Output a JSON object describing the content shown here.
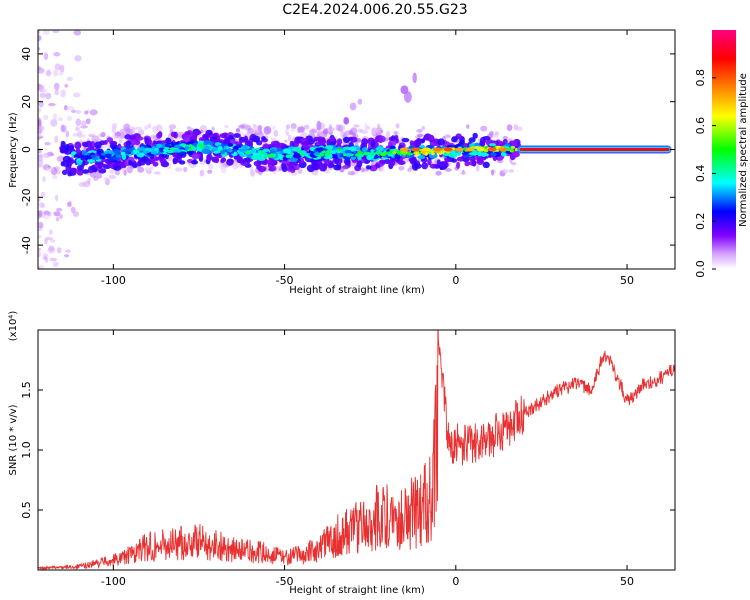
{
  "title": "C2E4.2024.006.20.55.G23",
  "chart_data": [
    {
      "type": "heatmap",
      "xlabel": "Height of straight line (km)",
      "ylabel": "Frequency (Hz)",
      "xlim": [
        -122,
        64
      ],
      "ylim": [
        -50,
        50
      ],
      "xticks": [
        -100,
        -50,
        0,
        50
      ],
      "xtick_labels": [
        "-100",
        "-50",
        "0",
        "50"
      ],
      "yticks": [
        -40,
        -20,
        0,
        20,
        40
      ],
      "ytick_labels": [
        "-40",
        "-20",
        "0",
        "20",
        "40"
      ],
      "colorbar": {
        "label": "Normalized spectral amplitude",
        "range": [
          0,
          1
        ],
        "ticks": [
          0.0,
          0.2,
          0.4,
          0.6,
          0.8
        ],
        "tick_labels": [
          "0.0",
          "0.2",
          "0.4",
          "0.6",
          "0.8"
        ],
        "colors": [
          "#ffffff",
          "#c080ff",
          "#8000ff",
          "#0000ff",
          "#00ffff",
          "#00ff00",
          "#ffff00",
          "#ff8000",
          "#ff0000",
          "#ff0080"
        ]
      },
      "ridge": [
        {
          "x": -115,
          "f": -4,
          "amp": 0.15
        },
        {
          "x": -105,
          "f": -3,
          "amp": 0.3
        },
        {
          "x": -95,
          "f": -1,
          "amp": 0.4
        },
        {
          "x": -85,
          "f": 0,
          "amp": 0.42
        },
        {
          "x": -75,
          "f": 1,
          "amp": 0.45
        },
        {
          "x": -65,
          "f": 0,
          "amp": 0.42
        },
        {
          "x": -55,
          "f": -2,
          "amp": 0.45
        },
        {
          "x": -45,
          "f": -2,
          "amp": 0.42
        },
        {
          "x": -35,
          "f": -1,
          "amp": 0.45
        },
        {
          "x": -25,
          "f": -2,
          "amp": 0.5
        },
        {
          "x": -15,
          "f": -1,
          "amp": 0.6
        },
        {
          "x": -5,
          "f": -1,
          "amp": 0.75
        },
        {
          "x": 5,
          "f": 0,
          "amp": 0.7
        },
        {
          "x": 15,
          "f": 0,
          "amp": 0.65
        },
        {
          "x": 20,
          "f": 0,
          "amp": 0.9
        },
        {
          "x": 40,
          "f": 0,
          "amp": 0.92
        },
        {
          "x": 63,
          "f": 0,
          "amp": 0.92
        }
      ]
    },
    {
      "type": "line",
      "xlabel": "Height of straight line (km)",
      "ylabel": "SNR (10 * v/v)",
      "y_multiplier": "(x10⁴)",
      "xlim": [
        -122,
        64
      ],
      "ylim": [
        0,
        2.0
      ],
      "xticks": [
        -100,
        -50,
        0,
        50
      ],
      "xtick_labels": [
        "-100",
        "-50",
        "0",
        "50"
      ],
      "yticks": [
        0.5,
        1.0,
        1.5
      ],
      "ytick_labels": [
        "0.5",
        "1.0",
        "1.5"
      ],
      "series": [
        {
          "color": "#e83030",
          "x": [
            -122,
            -110,
            -105,
            -100,
            -95,
            -90,
            -85,
            -80,
            -75,
            -70,
            -65,
            -60,
            -55,
            -50,
            -45,
            -40,
            -35,
            -30,
            -25,
            -20,
            -15,
            -10,
            -7,
            -5,
            -2,
            0,
            5,
            10,
            15,
            20,
            25,
            30,
            35,
            40,
            43,
            45,
            48,
            50,
            55,
            60,
            64
          ],
          "y": [
            0.02,
            0.04,
            0.08,
            0.12,
            0.18,
            0.28,
            0.3,
            0.32,
            0.34,
            0.3,
            0.24,
            0.22,
            0.2,
            0.15,
            0.18,
            0.25,
            0.4,
            0.5,
            0.6,
            0.65,
            0.65,
            0.7,
            0.95,
            1.95,
            1.05,
            1.05,
            1.05,
            1.1,
            1.2,
            1.3,
            1.4,
            1.5,
            1.55,
            1.5,
            1.8,
            1.75,
            1.55,
            1.4,
            1.55,
            1.6,
            1.7
          ]
        }
      ]
    }
  ]
}
